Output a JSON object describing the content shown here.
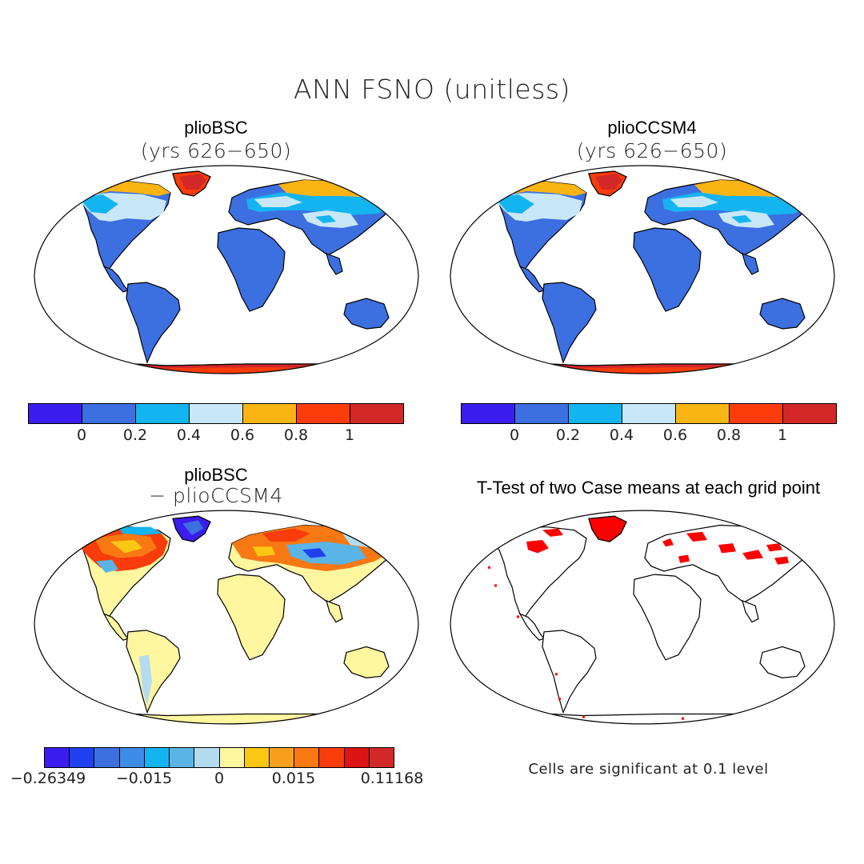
{
  "figure": {
    "title": "ANN FSNO (unitless)"
  },
  "panels": [
    {
      "id": "top-left",
      "title": "plioBSC",
      "subtitle": "(yrs 626−650)"
    },
    {
      "id": "top-right",
      "title": "plioCCSM4",
      "subtitle": "(yrs 626−650)"
    },
    {
      "id": "bottom-left",
      "title": "plioBSC",
      "subtitle": "− plioCCSM4"
    },
    {
      "id": "bottom-right",
      "title": "T-Test of two Case means at each grid point",
      "subtitle": ""
    }
  ],
  "colorbar_main": {
    "colors": [
      "#3c1df0",
      "#3c6fe0",
      "#14b4f0",
      "#c8e8f8",
      "#fab414",
      "#fa3c0a",
      "#d22828"
    ],
    "ticks": [
      "0",
      "0.2",
      "0.4",
      "0.6",
      "0.8",
      "1"
    ]
  },
  "colorbar_diff": {
    "colors": [
      "#3c1df0",
      "#2040f0",
      "#3c6fe0",
      "#3c8ce8",
      "#14b4f0",
      "#5ab4e6",
      "#b4dcf0",
      "#fff6a0",
      "#fac814",
      "#f8a01e",
      "#f87814",
      "#f83c0a",
      "#dc1414",
      "#d22828"
    ],
    "ticks": [
      "−0.26349",
      "−0.015",
      "0",
      "0.015",
      "0.11168"
    ]
  },
  "significance_note": "Cells are significant at 0.1 level",
  "map_colors": {
    "ocean": "#ffffff",
    "land_base": "#3c6fe0",
    "diff_land": "#fff6a0",
    "signif": "#ff0000"
  }
}
